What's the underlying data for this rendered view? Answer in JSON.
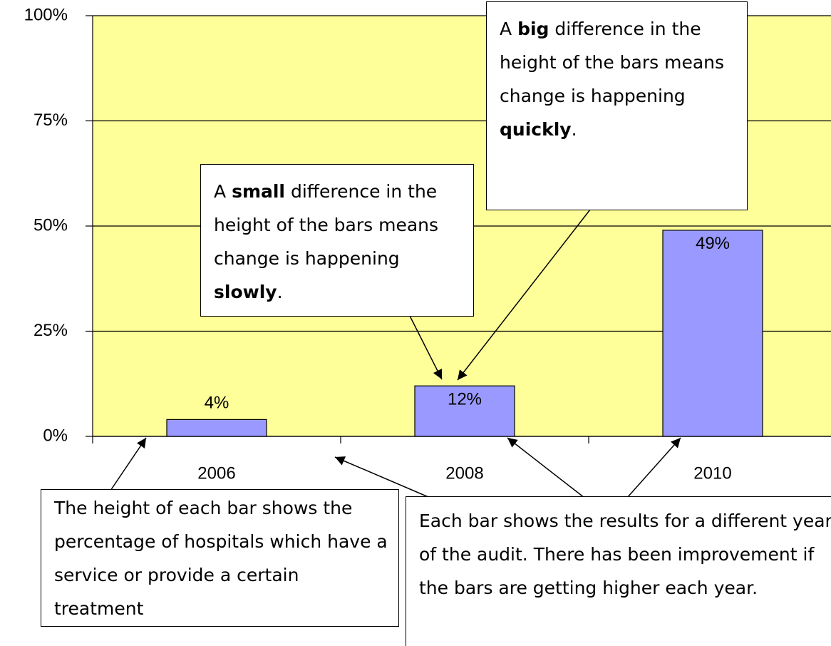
{
  "chart_data": {
    "type": "bar",
    "categories": [
      "2006",
      "2008",
      "2010"
    ],
    "values": [
      4,
      12,
      49
    ],
    "value_labels": [
      "4%",
      "12%",
      "49%"
    ],
    "color": "#9999ff",
    "background": "#ffff99",
    "ylim": [
      0,
      100
    ],
    "yticks": [
      {
        "value": 0,
        "label": "0%"
      },
      {
        "value": 25,
        "label": "25%"
      },
      {
        "value": 50,
        "label": "50%"
      },
      {
        "value": 75,
        "label": "75%"
      },
      {
        "value": 100,
        "label": "100%"
      }
    ],
    "grid": true,
    "annotations": [
      {
        "text": "A small difference in the height of the bars means change is happening slowly.",
        "bold": [
          "small",
          "slowly"
        ]
      },
      {
        "text": "A big difference in the height of the bars means change is happening quickly.",
        "bold": [
          "big",
          "quickly"
        ]
      },
      {
        "text": "The height of each bar shows the percentage of hospitals which have a service or provide a certain treatment",
        "bold": []
      },
      {
        "text": "Each bar shows the results for a different year of the audit. There has been improvement if the bars are getting higher each year.",
        "bold": []
      }
    ]
  }
}
